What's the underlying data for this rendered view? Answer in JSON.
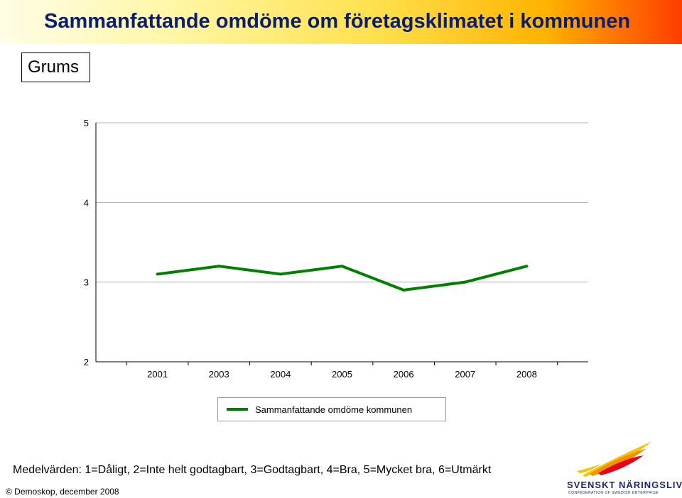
{
  "header": {
    "title": "Sammanfattande omdöme om företagsklimatet i kommunen",
    "municipality": "Grums"
  },
  "chart_data": {
    "type": "line",
    "title": "",
    "xlabel": "",
    "ylabel": "",
    "categories": [
      "2001",
      "2003",
      "2004",
      "2005",
      "2006",
      "2007",
      "2008"
    ],
    "series": [
      {
        "name": "Sammanfattande omdöme kommunen",
        "values": [
          3.1,
          3.2,
          3.1,
          3.2,
          2.9,
          3.0,
          3.2
        ],
        "color": "#008000"
      }
    ],
    "ylim": [
      2,
      5
    ],
    "yticks": [
      "2",
      "3",
      "4",
      "5"
    ],
    "grid": true,
    "legend_position": "bottom-center"
  },
  "footer": {
    "scale_note": "Medelvärden: 1=Dåligt, 2=Inte helt godtagbart, 3=Godtagbart, 4=Bra, 5=Mycket bra, 6=Utmärkt",
    "copyright": "© Demoskop, december 2008",
    "logo_text": "SVENSKT NÄRINGSLIV",
    "logo_subtext": "CONFEDERATION OF SWEDISH ENTERPRISE"
  },
  "colors": {
    "title": "#0b1e6e",
    "series": "#008000",
    "grid": "#b0b0b0"
  }
}
